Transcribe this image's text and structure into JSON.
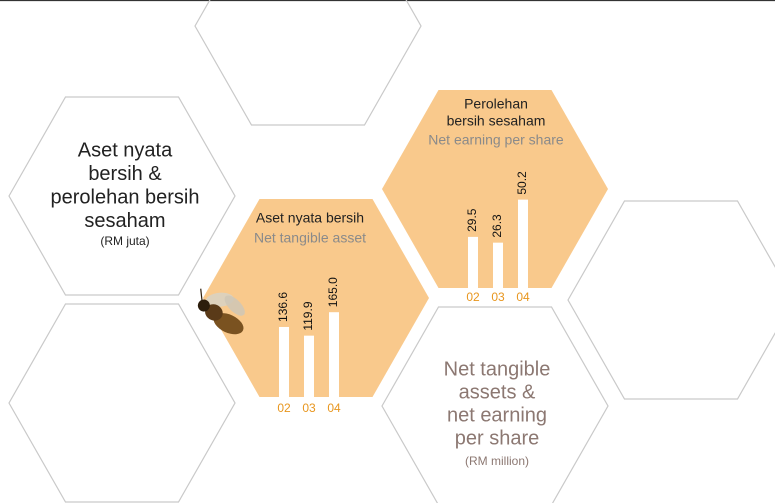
{
  "panels": {
    "left": {
      "lines": [
        "Aset nyata",
        "bersih &",
        "perolehan bersih",
        "sesaham"
      ],
      "unit": "(RM juta)"
    },
    "right": {
      "lines": [
        "Net tangible",
        "assets &",
        "net earning",
        "per share"
      ],
      "unit": "(RM million)"
    }
  },
  "chart_data": [
    {
      "type": "bar",
      "title": [
        "Aset nyata bersih"
      ],
      "subtitle": "Net tangible asset",
      "categories": [
        "02",
        "03",
        "04"
      ],
      "values": [
        136.6,
        119.9,
        165
      ],
      "value_labels": [
        "136.6",
        "119.9",
        "165.0"
      ],
      "color": "#ffffff"
    },
    {
      "type": "bar",
      "title": [
        "Perolehan",
        "bersih sesaham"
      ],
      "subtitle": "Net earning per share",
      "categories": [
        "02",
        "03",
        "04"
      ],
      "values": [
        29.5,
        26.3,
        50.2
      ],
      "color": "#ffffff"
    }
  ]
}
